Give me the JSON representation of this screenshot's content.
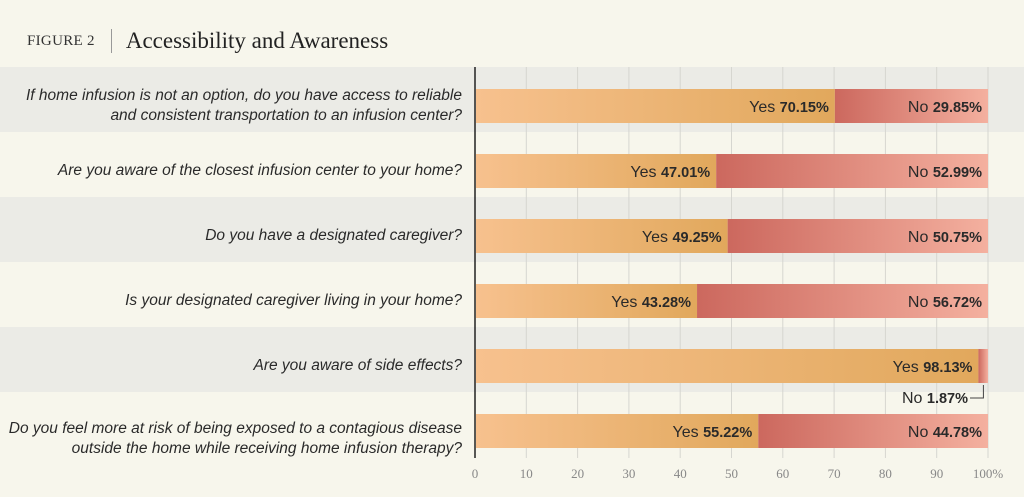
{
  "header": {
    "figure_label": "FIGURE 2",
    "title": "Accessibility and Awareness"
  },
  "chart_data": {
    "type": "bar",
    "stacked": true,
    "orientation": "horizontal",
    "title": "Accessibility and Awareness",
    "categories": [
      "If home infusion is not an option, do you have access to reliable and consistent transportation to an infusion center?",
      "Are you aware of the closest infusion center to your home?",
      "Do you have a designated caregiver?",
      "Is your designated caregiver living in your home?",
      "Are you aware of side effects?",
      "Do you feel more at risk of being exposed to a contagious disease outside the home while receiving home infusion therapy?"
    ],
    "series": [
      {
        "name": "Yes",
        "values": [
          70.15,
          47.01,
          49.25,
          43.28,
          98.13,
          55.22
        ],
        "color": "#e6ad62"
      },
      {
        "name": "No",
        "values": [
          29.85,
          52.99,
          50.75,
          56.72,
          1.87,
          44.78
        ],
        "color": "#d2756a"
      }
    ],
    "xlim": [
      0,
      100
    ],
    "xticks": [
      "0",
      "10",
      "20",
      "30",
      "40",
      "50",
      "60",
      "70",
      "80",
      "90",
      "100%"
    ],
    "grid": true,
    "legend": "none"
  }
}
